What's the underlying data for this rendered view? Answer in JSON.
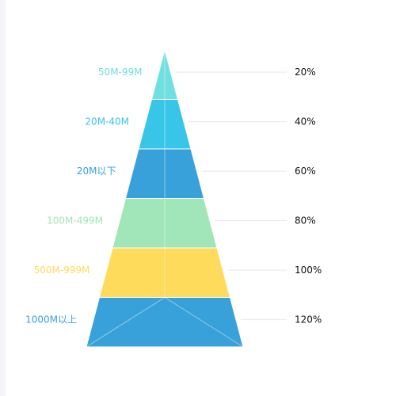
{
  "chart_data": {
    "type": "pyramid",
    "title": "",
    "layers": [
      {
        "name": "50M-99M",
        "value": 20,
        "label": "20%",
        "color": "#6fe0df"
      },
      {
        "name": "20M-40M",
        "value": 40,
        "label": "40%",
        "color": "#37c5e8"
      },
      {
        "name": "20M以下",
        "value": 60,
        "label": "60%",
        "color": "#38a1da"
      },
      {
        "name": "100M-499M",
        "value": 80,
        "label": "80%",
        "color": "#a1e6b9"
      },
      {
        "name": "500M-999M",
        "value": 100,
        "label": "100%",
        "color": "#ffdb5c"
      },
      {
        "name": "1000M以上",
        "value": 120,
        "label": "120%",
        "color": "#38a1da"
      }
    ],
    "value_range": [
      0,
      120
    ],
    "grid": false,
    "legend": "none"
  },
  "colors": {
    "left_label_colors": [
      "#6fe0df",
      "#37c5e8",
      "#38a1da",
      "#a1e6b9",
      "#ffdb5c",
      "#38a1da"
    ],
    "guide_line": "#e6e8ee",
    "inner_line": "rgba(255,255,255,0.45)"
  }
}
